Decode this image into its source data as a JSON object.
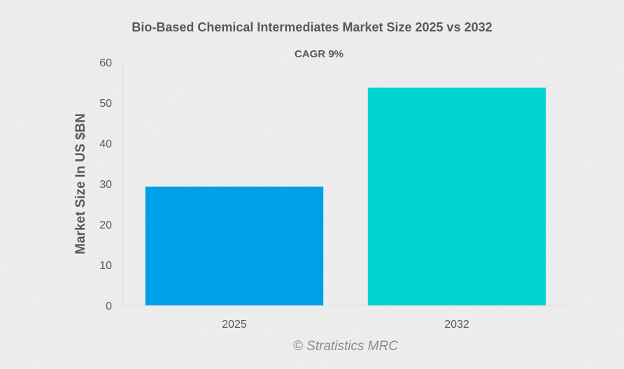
{
  "chart_data": {
    "type": "bar",
    "title": "Bio-Based Chemical Intermediates Market Size 2025 vs 2032",
    "subtitle": "CAGR 9%",
    "xlabel": "",
    "ylabel": "Market Size In US $BN",
    "categories": [
      "2025",
      "2032"
    ],
    "values": [
      29.3,
      53.7
    ],
    "colors": [
      "#00a0e9",
      "#00d4d2"
    ],
    "ylim": [
      0,
      60
    ],
    "yticks": [
      0,
      10,
      20,
      30,
      40,
      50,
      60
    ],
    "grid": false,
    "legend": "none"
  },
  "watermark": "© Stratistics MRC"
}
